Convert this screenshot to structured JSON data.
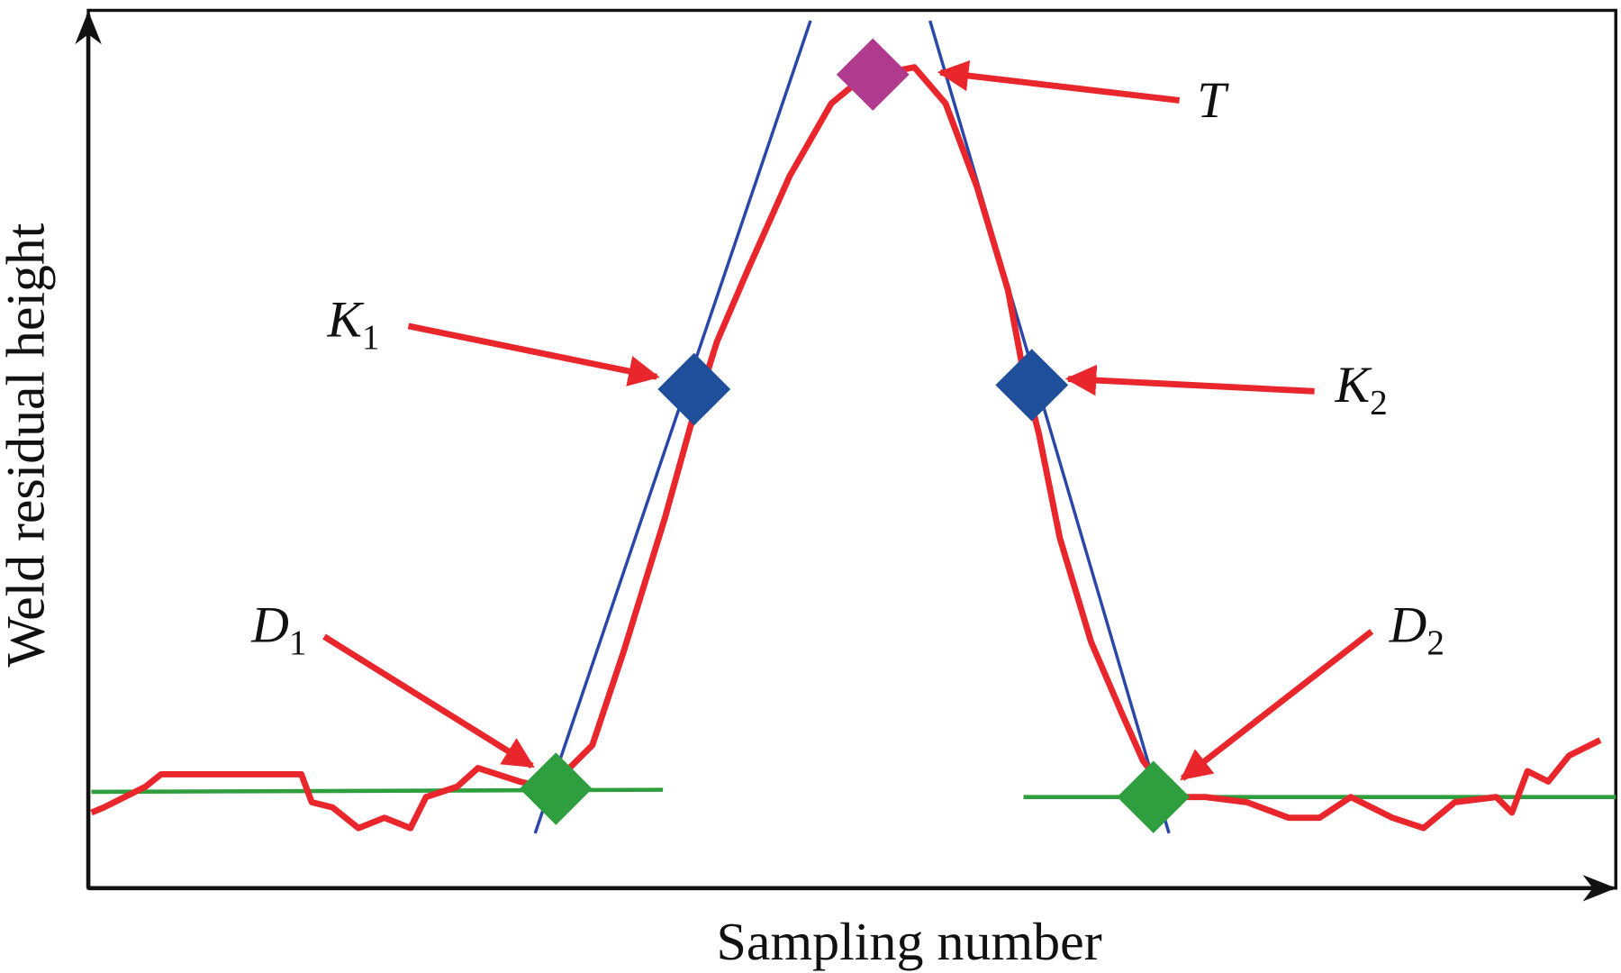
{
  "x_axis_label": "Sampling number",
  "y_axis_label": "Weld residual height",
  "points": [
    {
      "name": "T"
    },
    {
      "name": "K",
      "subscript": "1"
    },
    {
      "name": "K",
      "subscript": "2"
    },
    {
      "name": "D",
      "subscript": "1"
    },
    {
      "name": "D",
      "subscript": "2"
    }
  ]
}
